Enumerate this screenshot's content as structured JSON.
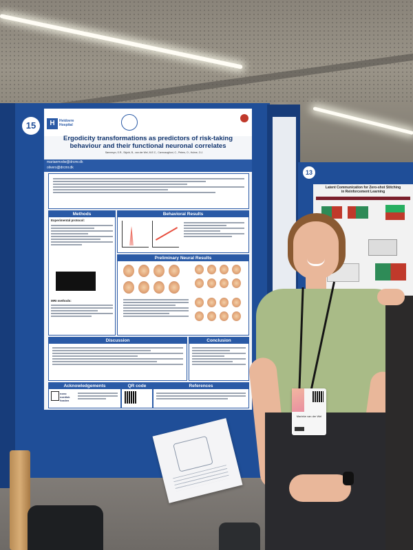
{
  "boards": {
    "main_number": "15",
    "right_number": "13"
  },
  "poster": {
    "org_name": "Hvidovre Hospital",
    "title_line1": "Ergodicity transformations as predictors of risk-taking",
    "title_line2": "behaviour and their functional neuronal correlates",
    "authors": "Sønnesyn, S.R., Skjold, B., van der Wel, M.E.C., Carmosoglioni, C., Peters, O., Hulme, O.J.",
    "contact1": "mariaemvdw@drcmr.dk",
    "contact2": "olivers@drcmr.dk",
    "sections": {
      "methods": "Methods",
      "methods_sub": "Experimental protocol:",
      "mri_methods": "MRI methods:",
      "behavioral": "Behavioral Results",
      "neural": "Preliminary Neural Results",
      "discussion": "Discussion",
      "conclusion": "Conclusion",
      "acknowledgements": "Acknowledgements",
      "qr": "QR code",
      "references": "References"
    },
    "sponsor": "novo nordisk fonden"
  },
  "right_poster": {
    "title_line1": "Latent Communication for Zero-shot Stitching",
    "title_line2": "in Reinforcement Learning"
  },
  "badge": {
    "name": "Marieke van der Wel"
  }
}
